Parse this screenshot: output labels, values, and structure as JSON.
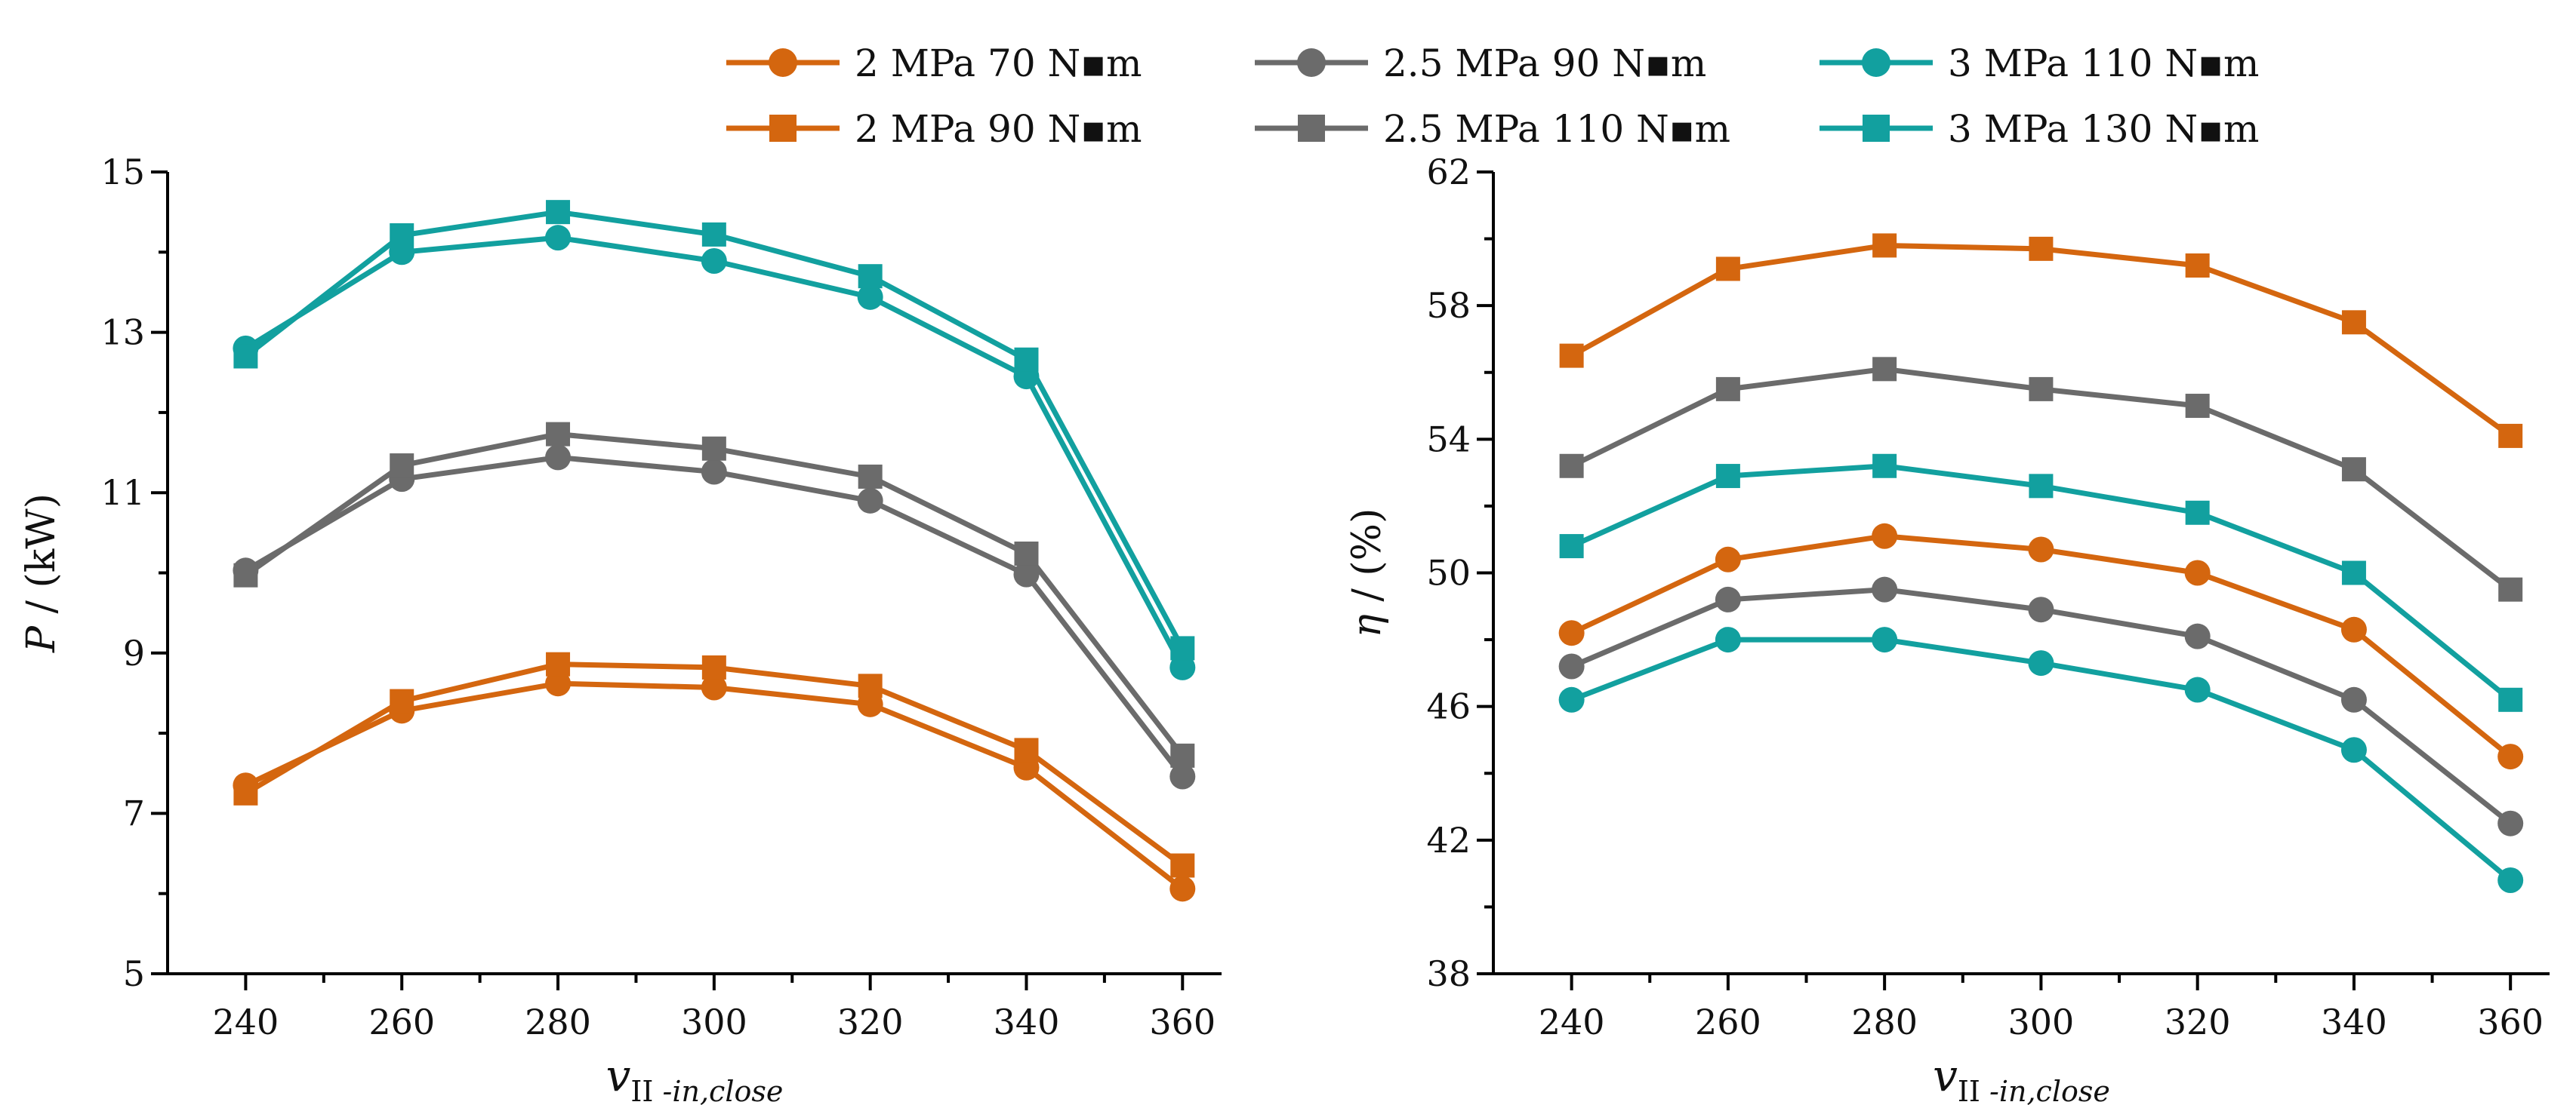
{
  "chart_data": [
    {
      "type": "line",
      "title": "",
      "xlabel": "v",
      "xlabel_sub": "II -in,close",
      "ylabel": "P / (kW)",
      "ylabel_italic": "P",
      "ylabel_rest": " / (kW)",
      "ylim": [
        5,
        15
      ],
      "yticks": [
        5,
        7,
        9,
        11,
        13,
        15
      ],
      "xticks": [
        240,
        260,
        280,
        300,
        320,
        340,
        360
      ],
      "x": [
        240,
        260,
        280,
        300,
        320,
        340,
        360
      ],
      "series": [
        {
          "name": "2 MPa 70 N▪m",
          "color": "#d4660f",
          "marker": "circle",
          "values": [
            7.35,
            8.28,
            8.62,
            8.57,
            8.36,
            7.57,
            6.06
          ]
        },
        {
          "name": "2 MPa 90 N▪m",
          "color": "#d4660f",
          "marker": "square",
          "values": [
            7.25,
            8.4,
            8.86,
            8.82,
            8.59,
            7.79,
            6.35
          ]
        },
        {
          "name": "2.5 MPa 90 N▪m",
          "color": "#6b6b6b",
          "marker": "circle",
          "values": [
            10.03,
            11.17,
            11.44,
            11.26,
            10.9,
            9.98,
            7.46
          ]
        },
        {
          "name": "2.5 MPa 110 N▪m",
          "color": "#6b6b6b",
          "marker": "square",
          "values": [
            9.97,
            11.34,
            11.73,
            11.55,
            11.2,
            10.24,
            7.72
          ]
        },
        {
          "name": "3 MPa 110 N▪m",
          "color": "#12a09f",
          "marker": "circle",
          "values": [
            12.8,
            14.0,
            14.18,
            13.89,
            13.44,
            12.45,
            8.82
          ]
        },
        {
          "name": "3 MPa 130 N▪m",
          "color": "#12a09f",
          "marker": "square",
          "values": [
            12.7,
            14.21,
            14.5,
            14.22,
            13.7,
            12.66,
            9.06
          ]
        }
      ]
    },
    {
      "type": "line",
      "title": "",
      "xlabel": "v",
      "xlabel_sub": "II -in,close",
      "ylabel": "η / (%)",
      "ylabel_italic": "η",
      "ylabel_rest": " / (%)",
      "ylim": [
        38,
        62
      ],
      "yticks": [
        38,
        42,
        46,
        50,
        54,
        58,
        62
      ],
      "xticks": [
        240,
        260,
        280,
        300,
        320,
        340,
        360
      ],
      "x": [
        240,
        260,
        280,
        300,
        320,
        340,
        360
      ],
      "series": [
        {
          "name": "2 MPa 70 N▪m",
          "color": "#d4660f",
          "marker": "circle",
          "values": [
            48.2,
            50.4,
            51.1,
            50.7,
            50.0,
            48.3,
            44.5
          ]
        },
        {
          "name": "2 MPa 90 N▪m",
          "color": "#d4660f",
          "marker": "square",
          "values": [
            56.5,
            59.1,
            59.8,
            59.7,
            59.2,
            57.5,
            54.1
          ]
        },
        {
          "name": "2.5 MPa 90 N▪m",
          "color": "#6b6b6b",
          "marker": "circle",
          "values": [
            47.2,
            49.2,
            49.5,
            48.9,
            48.1,
            46.2,
            42.5
          ]
        },
        {
          "name": "2.5 MPa 110 N▪m",
          "color": "#6b6b6b",
          "marker": "square",
          "values": [
            53.2,
            55.5,
            56.1,
            55.5,
            55.0,
            53.1,
            49.5
          ]
        },
        {
          "name": "3 MPa 110 N▪m",
          "color": "#12a09f",
          "marker": "circle",
          "values": [
            46.2,
            48.0,
            48.0,
            47.3,
            46.5,
            44.7,
            40.8
          ]
        },
        {
          "name": "3 MPa 130 N▪m",
          "color": "#12a09f",
          "marker": "square",
          "values": [
            50.8,
            52.9,
            53.2,
            52.6,
            51.8,
            50.0,
            46.2
          ]
        }
      ]
    }
  ],
  "legend": {
    "placement": "top",
    "entries": [
      {
        "label": "2 MPa 70 N▪m",
        "color": "#d4660f",
        "marker": "circle"
      },
      {
        "label": "2.5 MPa 90 N▪m",
        "color": "#6b6b6b",
        "marker": "circle"
      },
      {
        "label": "3 MPa 110 N▪m",
        "color": "#12a09f",
        "marker": "circle"
      },
      {
        "label": "2 MPa 90 N▪m",
        "color": "#d4660f",
        "marker": "square"
      },
      {
        "label": "2.5 MPa 110 N▪m",
        "color": "#6b6b6b",
        "marker": "square"
      },
      {
        "label": "3 MPa 130 N▪m",
        "color": "#12a09f",
        "marker": "square"
      }
    ]
  }
}
